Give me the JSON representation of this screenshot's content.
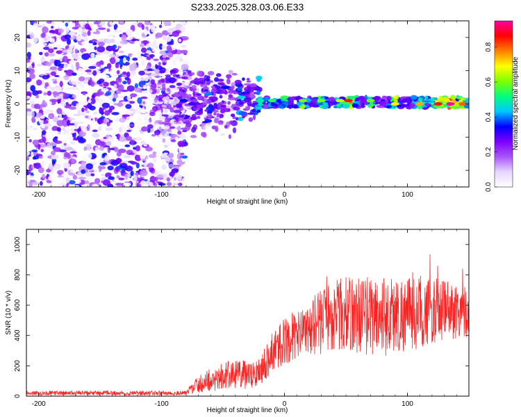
{
  "chart_data": [
    {
      "type": "heatmap",
      "title": "S233.2025.328.03.06.E33",
      "xlabel": "Height of straight line (km)",
      "ylabel": "Frequency (Hz)",
      "xlim": [
        -210,
        150
      ],
      "ylim": [
        -25,
        25
      ],
      "x_ticks": [
        -200,
        -100,
        0,
        100
      ],
      "y_ticks": [
        -20,
        -10,
        0,
        10,
        20
      ],
      "noise_region_x": [
        -210,
        -80
      ],
      "signal_band_hz": [
        -2,
        3
      ],
      "colorbar": {
        "label": "Normalized spectral amplitude",
        "range": [
          0,
          0.95
        ],
        "ticks": [
          "0.0",
          "0.2",
          "0.4",
          "0.6",
          "0.8"
        ],
        "colormap": [
          "#ffffff",
          "#e6d6ff",
          "#a855f7",
          "#7e00ff",
          "#0000ff",
          "#00c8ff",
          "#00ff7f",
          "#7fff00",
          "#ffff00",
          "#ff8000",
          "#ff0000",
          "#ff00a0"
        ]
      },
      "signal_peaks": [
        {
          "x": -82,
          "f": 1,
          "amp": 0.35
        },
        {
          "x": -75,
          "f": 0,
          "amp": 0.3
        },
        {
          "x": -62,
          "f": 3,
          "amp": 0.4
        },
        {
          "x": -48,
          "f": 5,
          "amp": 0.35
        },
        {
          "x": -35,
          "f": 2,
          "amp": 0.45
        },
        {
          "x": -20,
          "f": 1,
          "amp": 0.5
        },
        {
          "x": -10,
          "f": 1,
          "amp": 0.55
        },
        {
          "x": 0,
          "f": 2,
          "amp": 0.55
        },
        {
          "x": 15,
          "f": 1,
          "amp": 0.6
        },
        {
          "x": 30,
          "f": 1,
          "amp": 0.6
        },
        {
          "x": 45,
          "f": 1,
          "amp": 0.65
        },
        {
          "x": 52,
          "f": 1,
          "amp": 0.85
        },
        {
          "x": 70,
          "f": 1,
          "amp": 0.6
        },
        {
          "x": 90,
          "f": 0,
          "amp": 0.7
        },
        {
          "x": 110,
          "f": 0,
          "amp": 0.75
        },
        {
          "x": 125,
          "f": 0,
          "amp": 0.85
        },
        {
          "x": 135,
          "f": 0,
          "amp": 0.95
        },
        {
          "x": 145,
          "f": 0,
          "amp": 0.8
        }
      ]
    },
    {
      "type": "line",
      "xlabel": "Height of straight line (km)",
      "ylabel": "SNR (10 * v/v)",
      "xlim": [
        -210,
        150
      ],
      "ylim": [
        0,
        1100
      ],
      "x_ticks": [
        -200,
        -100,
        0,
        100
      ],
      "y_ticks": [
        0,
        200,
        400,
        600,
        800,
        1000
      ],
      "color": "#ff2020",
      "envelope": {
        "x": [
          -210,
          -80,
          -75,
          -60,
          -40,
          -25,
          -15,
          -5,
          5,
          20,
          30,
          40,
          60,
          80,
          100,
          120,
          150
        ],
        "mean": [
          20,
          20,
          60,
          110,
          150,
          130,
          230,
          330,
          390,
          420,
          500,
          540,
          540,
          530,
          540,
          560,
          570
        ],
        "spread": [
          15,
          15,
          40,
          80,
          100,
          90,
          120,
          150,
          160,
          180,
          220,
          240,
          260,
          270,
          250,
          220,
          180
        ]
      }
    }
  ]
}
